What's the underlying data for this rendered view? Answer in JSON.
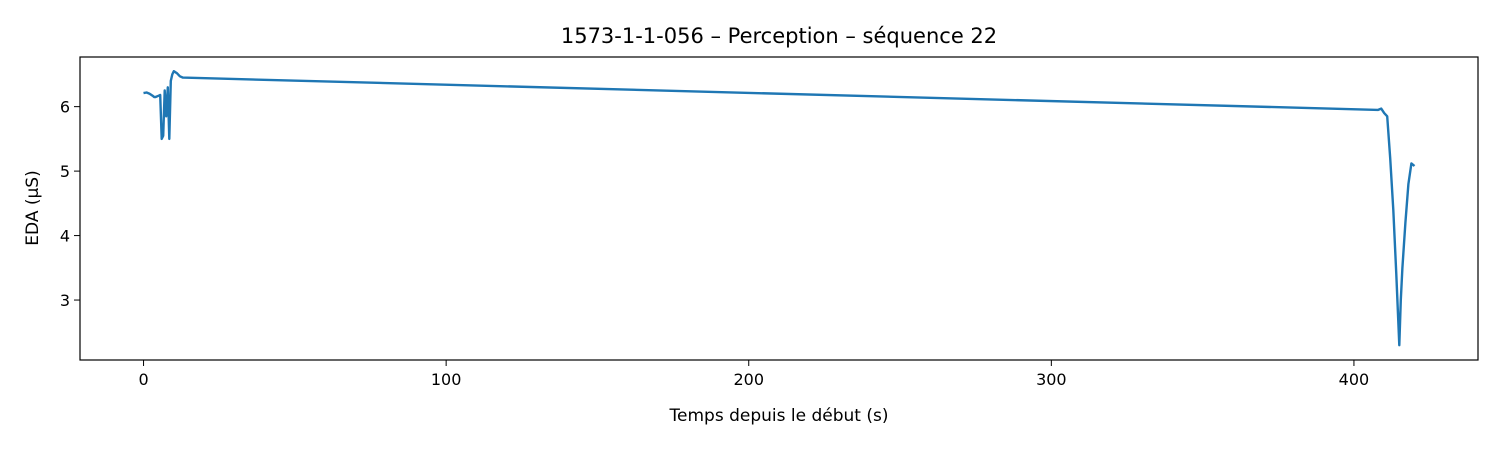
{
  "chart_data": {
    "type": "line",
    "title": "1573-1-1-056 – Perception – séquence 22",
    "xlabel": "Temps depuis le début (s)",
    "ylabel": "EDA (µS)",
    "xlim": [
      -21,
      441
    ],
    "ylim": [
      2.07,
      6.77
    ],
    "xticks": [
      0,
      100,
      200,
      300,
      400
    ],
    "yticks": [
      3,
      4,
      5,
      6
    ],
    "grid": false,
    "series": [
      {
        "color": "#1f77b4",
        "x": [
          0,
          1,
          2,
          3,
          3.5,
          4,
          5,
          5.5,
          6,
          6.5,
          7,
          7.5,
          8,
          8.5,
          9,
          9.5,
          10,
          11,
          12,
          13,
          408,
          409,
          410,
          411,
          412,
          413,
          414,
          415,
          415.5,
          416,
          417,
          418,
          419,
          420
        ],
        "y": [
          6.21,
          6.22,
          6.2,
          6.17,
          6.15,
          6.15,
          6.17,
          6.18,
          5.5,
          5.55,
          6.25,
          5.85,
          6.3,
          5.5,
          6.4,
          6.5,
          6.55,
          6.52,
          6.47,
          6.45,
          5.95,
          5.97,
          5.9,
          5.85,
          5.2,
          4.4,
          3.4,
          2.3,
          3.0,
          3.5,
          4.2,
          4.8,
          5.12,
          5.08
        ]
      }
    ]
  }
}
